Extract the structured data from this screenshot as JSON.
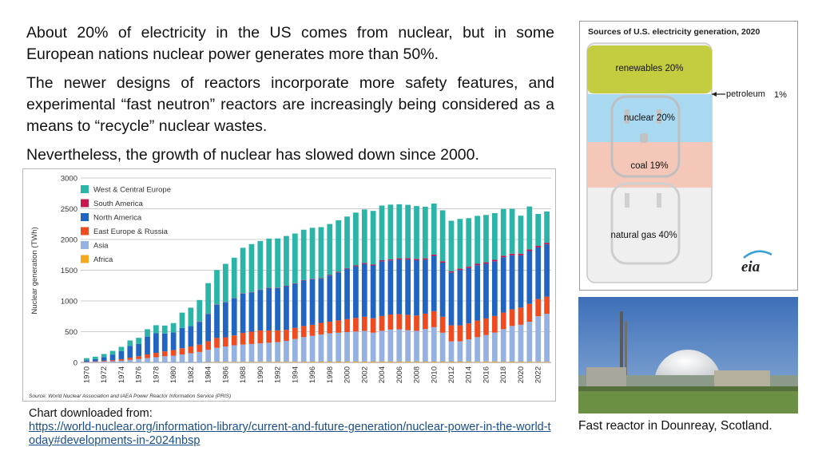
{
  "slide": {
    "paragraphs": [
      "About 20% of electricity in the US comes from nuclear, but in some European nations nuclear power generates more than 50%.",
      "The newer designs of reactors incorporate more safety features, and experimental “fast neutron” reactors are increasingly being considered as a means  to “recycle” nuclear wastes.",
      "Nevertheless, the growth of nuclear has slowed down since 2000."
    ],
    "chart_caption": {
      "label": "Chart downloaded from:",
      "url": "https://world-nuclear.org/information-library/current-and-future-generation/nuclear-power-in-the-world-today#developments-in-2024nbsp"
    },
    "photo_caption": "Fast reactor in Dounreay, Scotland."
  },
  "colors": {
    "west_central_europe": "#2bb5a8",
    "south_america": "#c8174f",
    "north_america": "#2065c2",
    "east_europe_russia": "#ee4b21",
    "asia": "#94b1e2",
    "africa": "#f6a81e"
  },
  "chart_data": [
    {
      "type": "bar",
      "stacked": true,
      "ylabel": "Nuclear generation (TWh)",
      "ylim": [
        0,
        3000
      ],
      "yticks": [
        0,
        500,
        1000,
        1500,
        2000,
        2500,
        3000
      ],
      "grid": true,
      "legend_position": "top-left",
      "source": "Source: World Nuclear Association and IAEA Power Reactor Information Service (PRIS)",
      "x": [
        1970,
        1971,
        1972,
        1973,
        1974,
        1975,
        1976,
        1977,
        1978,
        1979,
        1980,
        1981,
        1982,
        1983,
        1984,
        1985,
        1986,
        1987,
        1988,
        1989,
        1990,
        1991,
        1992,
        1993,
        1994,
        1995,
        1996,
        1997,
        1998,
        1999,
        2000,
        2001,
        2002,
        2003,
        2004,
        2005,
        2006,
        2007,
        2008,
        2009,
        2010,
        2011,
        2012,
        2013,
        2014,
        2015,
        2016,
        2017,
        2018,
        2019,
        2020,
        2021,
        2022,
        2023
      ],
      "xtick_labels": [
        "1970",
        "1972",
        "1974",
        "1976",
        "1978",
        "1980",
        "1982",
        "1984",
        "1986",
        "1988",
        "1990",
        "1992",
        "1994",
        "1996",
        "1998",
        "2000",
        "2002",
        "2004",
        "2006",
        "2008",
        "2010",
        "2012",
        "2014",
        "2016",
        "2018",
        "2020",
        "2022"
      ],
      "series": [
        {
          "name": "Africa",
          "values": [
            0,
            0,
            0,
            0,
            0,
            0,
            0,
            0,
            0,
            0,
            0,
            0,
            0,
            0,
            5,
            8,
            9,
            9,
            10,
            10,
            10,
            10,
            11,
            11,
            11,
            12,
            12,
            13,
            13,
            13,
            13,
            13,
            13,
            13,
            14,
            14,
            14,
            14,
            13,
            13,
            13,
            13,
            13,
            13,
            14,
            11,
            15,
            15,
            11,
            13,
            12,
            12,
            11,
            10
          ]
        },
        {
          "name": "Asia",
          "values": [
            5,
            10,
            15,
            20,
            28,
            42,
            55,
            70,
            85,
            100,
            110,
            130,
            150,
            170,
            200,
            230,
            250,
            270,
            280,
            290,
            300,
            310,
            320,
            340,
            370,
            400,
            420,
            440,
            460,
            470,
            480,
            490,
            500,
            470,
            500,
            520,
            525,
            510,
            500,
            530,
            560,
            470,
            330,
            330,
            360,
            400,
            430,
            470,
            530,
            580,
            600,
            650,
            740,
            780
          ]
        },
        {
          "name": "East Europe & Russia",
          "values": [
            5,
            8,
            12,
            18,
            25,
            35,
            45,
            60,
            70,
            80,
            90,
            100,
            110,
            120,
            140,
            160,
            150,
            160,
            190,
            200,
            210,
            200,
            190,
            180,
            180,
            180,
            180,
            190,
            190,
            200,
            210,
            220,
            230,
            235,
            240,
            245,
            245,
            250,
            250,
            250,
            260,
            260,
            260,
            260,
            260,
            270,
            270,
            270,
            270,
            270,
            280,
            290,
            280,
            280
          ]
        },
        {
          "name": "North America",
          "values": [
            25,
            35,
            60,
            90,
            130,
            190,
            200,
            290,
            320,
            290,
            290,
            330,
            330,
            370,
            440,
            540,
            570,
            600,
            640,
            640,
            660,
            690,
            690,
            710,
            720,
            740,
            740,
            720,
            750,
            780,
            820,
            840,
            860,
            860,
            890,
            880,
            890,
            900,
            900,
            880,
            900,
            880,
            860,
            900,
            900,
            900,
            890,
            890,
            900,
            880,
            850,
            860,
            840,
            850
          ]
        },
        {
          "name": "South America",
          "values": [
            0,
            0,
            0,
            0,
            0,
            0,
            0,
            0,
            0,
            0,
            0,
            0,
            0,
            5,
            5,
            5,
            5,
            5,
            5,
            5,
            5,
            5,
            6,
            6,
            6,
            7,
            8,
            8,
            9,
            10,
            10,
            15,
            16,
            17,
            18,
            18,
            19,
            20,
            21,
            20,
            21,
            22,
            22,
            22,
            23,
            23,
            24,
            24,
            24,
            25,
            25,
            25,
            25,
            26
          ]
        },
        {
          "name": "West & Central Europe",
          "values": [
            35,
            40,
            50,
            60,
            70,
            90,
            100,
            120,
            130,
            130,
            150,
            250,
            300,
            350,
            500,
            560,
            620,
            660,
            740,
            780,
            790,
            800,
            800,
            810,
            810,
            820,
            830,
            830,
            830,
            840,
            840,
            860,
            870,
            870,
            890,
            890,
            880,
            870,
            860,
            840,
            830,
            830,
            820,
            810,
            790,
            780,
            770,
            760,
            760,
            730,
            620,
            700,
            520,
            510
          ]
        }
      ]
    },
    {
      "type": "table",
      "title": "Sources of U.S. electricity generation, 2020",
      "rows": [
        {
          "label": "renewables 20%",
          "value": 20,
          "color": "#c4cd3f"
        },
        {
          "label": "petroleum",
          "value": 1,
          "value_label": "1%"
        },
        {
          "label": "nuclear 20%",
          "value": 20,
          "color": "#a9d9f0"
        },
        {
          "label": "coal 19%",
          "value": 19,
          "color": "#f5c7b8"
        },
        {
          "label": "natural gas 40%",
          "value": 40,
          "color": "#efefef"
        }
      ],
      "brand": "eia"
    }
  ]
}
